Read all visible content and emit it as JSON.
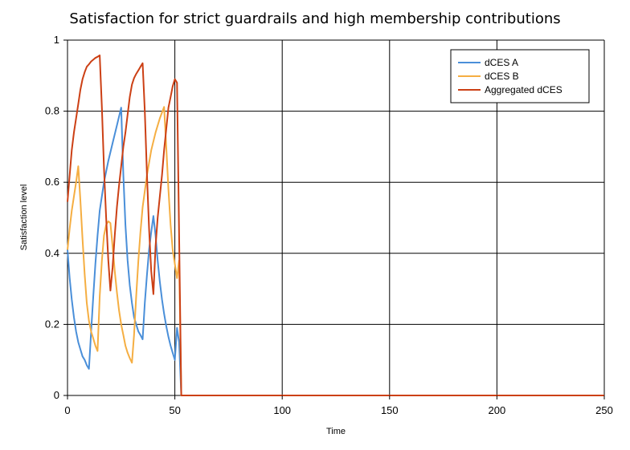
{
  "chart_data": {
    "type": "line",
    "title": "Satisfaction for strict guardrails and high membership contributions",
    "xlabel": "Time",
    "ylabel": "Satisfaction level",
    "xlim": [
      0,
      250
    ],
    "ylim": [
      0,
      1
    ],
    "xticks": [
      "0",
      "50",
      "100",
      "150",
      "200",
      "250"
    ],
    "yticks": [
      "0",
      "0.2",
      "0.4",
      "0.6",
      "0.8",
      "1"
    ],
    "grid": true,
    "legend_position": "top-right",
    "series": [
      {
        "name": "dCES A",
        "color": "#4a8fd9",
        "points": [
          [
            0,
            0.41
          ],
          [
            1,
            0.33
          ],
          [
            2,
            0.27
          ],
          [
            3,
            0.22
          ],
          [
            4,
            0.18
          ],
          [
            5,
            0.15
          ],
          [
            6,
            0.13
          ],
          [
            7,
            0.11
          ],
          [
            8,
            0.1
          ],
          [
            9,
            0.085
          ],
          [
            10,
            0.075
          ],
          [
            11,
            0.18
          ],
          [
            12,
            0.28
          ],
          [
            13,
            0.37
          ],
          [
            14,
            0.45
          ],
          [
            15,
            0.52
          ],
          [
            17,
            0.6
          ],
          [
            19,
            0.66
          ],
          [
            21,
            0.71
          ],
          [
            23,
            0.76
          ],
          [
            25,
            0.81
          ],
          [
            26,
            0.62
          ],
          [
            27,
            0.48
          ],
          [
            28,
            0.38
          ],
          [
            29,
            0.31
          ],
          [
            30,
            0.26
          ],
          [
            31,
            0.22
          ],
          [
            32,
            0.2
          ],
          [
            33,
            0.18
          ],
          [
            34,
            0.17
          ],
          [
            35,
            0.158
          ],
          [
            36,
            0.26
          ],
          [
            37,
            0.34
          ],
          [
            38,
            0.41
          ],
          [
            39,
            0.46
          ],
          [
            40,
            0.505
          ],
          [
            41,
            0.45
          ],
          [
            42,
            0.38
          ],
          [
            43,
            0.32
          ],
          [
            44,
            0.27
          ],
          [
            45,
            0.23
          ],
          [
            46,
            0.195
          ],
          [
            47,
            0.165
          ],
          [
            48,
            0.14
          ],
          [
            49,
            0.12
          ],
          [
            50,
            0.1
          ],
          [
            51,
            0.19
          ],
          [
            52,
            0.15
          ],
          [
            53,
            0
          ],
          [
            100,
            0
          ],
          [
            150,
            0
          ],
          [
            200,
            0
          ],
          [
            250,
            0
          ]
        ]
      },
      {
        "name": "dCES B",
        "color": "#f5ae42",
        "points": [
          [
            0,
            0.41
          ],
          [
            1,
            0.47
          ],
          [
            2,
            0.52
          ],
          [
            3,
            0.56
          ],
          [
            4,
            0.6
          ],
          [
            5,
            0.645
          ],
          [
            6,
            0.55
          ],
          [
            7,
            0.44
          ],
          [
            8,
            0.34
          ],
          [
            9,
            0.26
          ],
          [
            10,
            0.21
          ],
          [
            11,
            0.18
          ],
          [
            12,
            0.16
          ],
          [
            13,
            0.14
          ],
          [
            14,
            0.125
          ],
          [
            15,
            0.28
          ],
          [
            16,
            0.38
          ],
          [
            17,
            0.45
          ],
          [
            18,
            0.48
          ],
          [
            19,
            0.49
          ],
          [
            20,
            0.485
          ],
          [
            21,
            0.42
          ],
          [
            22,
            0.35
          ],
          [
            23,
            0.29
          ],
          [
            24,
            0.24
          ],
          [
            25,
            0.2
          ],
          [
            26,
            0.17
          ],
          [
            27,
            0.14
          ],
          [
            28,
            0.12
          ],
          [
            29,
            0.105
          ],
          [
            30,
            0.092
          ],
          [
            31,
            0.17
          ],
          [
            32,
            0.28
          ],
          [
            33,
            0.38
          ],
          [
            34,
            0.46
          ],
          [
            35,
            0.53
          ],
          [
            37,
            0.62
          ],
          [
            39,
            0.69
          ],
          [
            41,
            0.74
          ],
          [
            43,
            0.78
          ],
          [
            45,
            0.812
          ],
          [
            46,
            0.7
          ],
          [
            47,
            0.58
          ],
          [
            48,
            0.48
          ],
          [
            49,
            0.41
          ],
          [
            50,
            0.37
          ],
          [
            51,
            0.33
          ],
          [
            52,
            0.38
          ],
          [
            53,
            0
          ],
          [
            100,
            0
          ],
          [
            150,
            0
          ],
          [
            200,
            0
          ],
          [
            250,
            0
          ]
        ]
      },
      {
        "name": "Aggregated dCES",
        "color": "#cc4015",
        "points": [
          [
            0,
            0.545
          ],
          [
            1,
            0.62
          ],
          [
            2,
            0.69
          ],
          [
            3,
            0.74
          ],
          [
            4,
            0.78
          ],
          [
            5,
            0.82
          ],
          [
            6,
            0.86
          ],
          [
            7,
            0.89
          ],
          [
            8,
            0.91
          ],
          [
            9,
            0.925
          ],
          [
            10,
            0.932
          ],
          [
            11,
            0.94
          ],
          [
            12,
            0.945
          ],
          [
            13,
            0.95
          ],
          [
            14,
            0.953
          ],
          [
            15,
            0.957
          ],
          [
            16,
            0.81
          ],
          [
            17,
            0.64
          ],
          [
            18,
            0.5
          ],
          [
            19,
            0.38
          ],
          [
            20,
            0.295
          ],
          [
            21,
            0.36
          ],
          [
            22,
            0.45
          ],
          [
            23,
            0.53
          ],
          [
            24,
            0.59
          ],
          [
            25,
            0.645
          ],
          [
            26,
            0.7
          ],
          [
            27,
            0.74
          ],
          [
            28,
            0.79
          ],
          [
            29,
            0.84
          ],
          [
            30,
            0.875
          ],
          [
            31,
            0.893
          ],
          [
            32,
            0.905
          ],
          [
            33,
            0.915
          ],
          [
            34,
            0.925
          ],
          [
            35,
            0.935
          ],
          [
            36,
            0.8
          ],
          [
            37,
            0.62
          ],
          [
            38,
            0.47
          ],
          [
            39,
            0.35
          ],
          [
            40,
            0.285
          ],
          [
            41,
            0.42
          ],
          [
            42,
            0.5
          ],
          [
            43,
            0.56
          ],
          [
            44,
            0.62
          ],
          [
            45,
            0.69
          ],
          [
            46,
            0.75
          ],
          [
            47,
            0.81
          ],
          [
            48,
            0.84
          ],
          [
            49,
            0.87
          ],
          [
            50,
            0.89
          ],
          [
            51,
            0.88
          ],
          [
            52,
            0.45
          ],
          [
            53,
            0
          ],
          [
            100,
            0
          ],
          [
            150,
            0
          ],
          [
            200,
            0
          ],
          [
            250,
            0
          ]
        ]
      }
    ]
  }
}
